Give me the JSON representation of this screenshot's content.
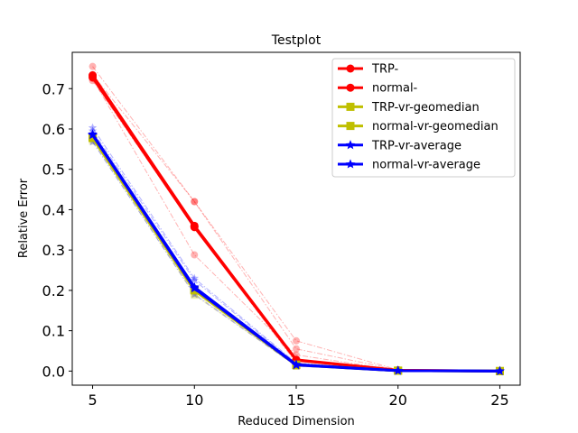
{
  "chart_data": {
    "type": "line",
    "title": "Testplot",
    "xlabel": "Reduced Dimension",
    "ylabel": "Relative Error",
    "x": [
      5,
      10,
      15,
      20,
      25
    ],
    "xlim": [
      4,
      26
    ],
    "ylim": [
      -0.035,
      0.79
    ],
    "xticks": [
      "5",
      "10",
      "15",
      "20",
      "25"
    ],
    "yticks": [
      "0.0",
      "0.1",
      "0.2",
      "0.3",
      "0.4",
      "0.5",
      "0.6",
      "0.7"
    ],
    "grid": false,
    "legend_position": "top-right",
    "series": [
      {
        "name": "TRP-",
        "color": "#ff0000",
        "marker": "circle",
        "values": [
          0.733,
          0.36,
          0.028,
          0.002,
          0.0
        ]
      },
      {
        "name": "normal-",
        "color": "#ff0000",
        "marker": "circle",
        "values": [
          0.728,
          0.357,
          0.027,
          0.002,
          0.0
        ]
      },
      {
        "name": "TRP-vr-geomedian",
        "color": "#bfbf00",
        "marker": "square",
        "values": [
          0.578,
          0.2,
          0.015,
          0.001,
          0.0
        ]
      },
      {
        "name": "normal-vr-geomedian",
        "color": "#bfbf00",
        "marker": "square",
        "values": [
          0.58,
          0.202,
          0.016,
          0.001,
          0.0
        ]
      },
      {
        "name": "TRP-vr-average",
        "color": "#0000ff",
        "marker": "star",
        "values": [
          0.587,
          0.208,
          0.016,
          0.001,
          0.0
        ]
      },
      {
        "name": "normal-vr-average",
        "color": "#0000ff",
        "marker": "star",
        "values": [
          0.585,
          0.205,
          0.015,
          0.001,
          0.0
        ]
      }
    ],
    "trials": [
      {
        "color": "#ff0000",
        "marker": "circle",
        "values": [
          0.755,
          0.42,
          0.075,
          0.003,
          0.0
        ]
      },
      {
        "color": "#ff0000",
        "marker": "circle",
        "values": [
          0.735,
          0.42,
          0.055,
          0.003,
          0.0
        ]
      },
      {
        "color": "#ff0000",
        "marker": "circle",
        "values": [
          0.725,
          0.288,
          0.04,
          0.002,
          0.0
        ]
      },
      {
        "color": "#ff0000",
        "marker": "circle",
        "values": [
          0.72,
          0.355,
          0.02,
          0.002,
          0.0
        ]
      },
      {
        "color": "#bfbf00",
        "marker": "square",
        "values": [
          0.57,
          0.188,
          0.012,
          0.001,
          0.0
        ]
      },
      {
        "color": "#bfbf00",
        "marker": "square",
        "values": [
          0.575,
          0.192,
          0.013,
          0.001,
          0.0
        ]
      },
      {
        "color": "#0000ff",
        "marker": "star",
        "values": [
          0.603,
          0.23,
          0.02,
          0.001,
          0.0
        ]
      },
      {
        "color": "#0000ff",
        "marker": "star",
        "values": [
          0.568,
          0.19,
          0.012,
          0.001,
          0.0
        ]
      },
      {
        "color": "#0000ff",
        "marker": "star",
        "values": [
          0.595,
          0.225,
          0.018,
          0.001,
          0.0
        ]
      }
    ]
  }
}
